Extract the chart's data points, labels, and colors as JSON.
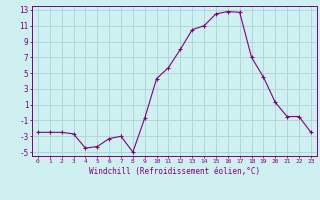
{
  "hours": [
    0,
    1,
    2,
    3,
    4,
    5,
    6,
    7,
    8,
    9,
    10,
    11,
    12,
    13,
    14,
    15,
    16,
    17,
    18,
    19,
    20,
    21,
    22,
    23
  ],
  "windchill": [
    -2.5,
    -2.5,
    -2.5,
    -2.7,
    -4.5,
    -4.3,
    -3.3,
    -3.0,
    -5.0,
    -0.7,
    4.3,
    5.7,
    8.0,
    10.5,
    11.0,
    12.5,
    12.8,
    12.7,
    7.0,
    4.5,
    1.3,
    -0.5,
    -0.5,
    -2.5
  ],
  "line_color": "#800080",
  "marker": "P",
  "marker_size": 2.5,
  "bg_color": "#cff0f0",
  "grid_color": "#aad4d4",
  "xlabel": "Windchill (Refroidissement éolien,°C)",
  "xlim": [
    -0.5,
    23.5
  ],
  "ylim": [
    -5.5,
    13.5
  ],
  "yticks": [
    -5,
    -3,
    -1,
    1,
    3,
    5,
    7,
    9,
    11,
    13
  ],
  "xtick_labels": [
    "0",
    "1",
    "2",
    "3",
    "4",
    "5",
    "6",
    "7",
    "8",
    "9",
    "10",
    "11",
    "12",
    "13",
    "14",
    "15",
    "16",
    "17",
    "18",
    "19",
    "20",
    "21",
    "22",
    "23"
  ],
  "axis_color": "#800080",
  "tick_color": "#800080",
  "label_color": "#800080",
  "xlabel_fontsize": 5.5,
  "xtick_fontsize": 4.5,
  "ytick_fontsize": 5.5
}
